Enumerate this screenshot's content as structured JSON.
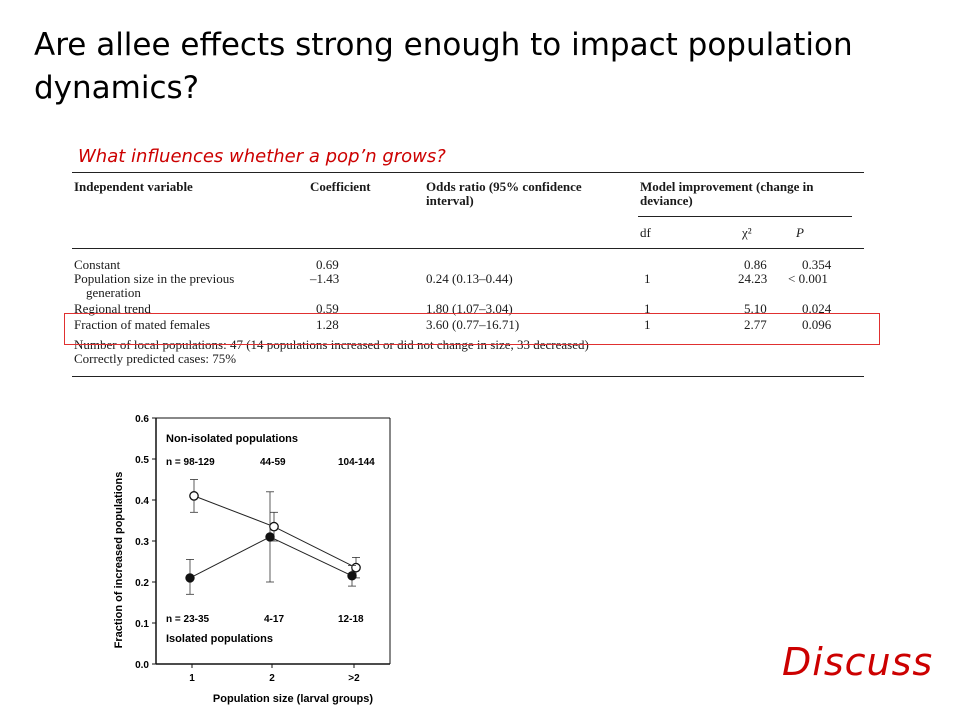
{
  "slide": {
    "title": "Are allee effects strong enough to impact population dynamics?",
    "subtitle": "What influences whether a pop’n grows?",
    "discuss": "Discuss",
    "accent_color": "#cc0000"
  },
  "table": {
    "headers": {
      "independent_variable": "Independent variable",
      "coefficient": "Coefficient",
      "odds_ratio_line1": "Odds ratio (95% confidence",
      "odds_ratio_line2": "interval)",
      "model_line1": "Model improvement (change in",
      "model_line2": "deviance)",
      "df": "df",
      "chi2": "χ²",
      "p": "P"
    },
    "rows": [
      {
        "variable": "Constant",
        "coefficient": "0.69",
        "odds": "",
        "df": "",
        "chi2": "0.86",
        "p": "0.354"
      },
      {
        "variable": "Population size in the previous",
        "variable2": "generation",
        "coefficient": "–1.43",
        "odds": "0.24 (0.13–0.44)",
        "df": "1",
        "chi2": "24.23",
        "p": "< 0.001"
      },
      {
        "variable": "Regional trend",
        "coefficient": "0.59",
        "odds": "1.80 (1.07–3.04)",
        "df": "1",
        "chi2": "5.10",
        "p": "0.024"
      },
      {
        "variable": "Fraction of mated females",
        "coefficient": "1.28",
        "odds": "3.60 (0.77–16.71)",
        "df": "1",
        "chi2": "2.77",
        "p": "0.096"
      }
    ],
    "footer1": "Number of local populations: 47 (14 populations increased or did not change in size, 33 decreased)",
    "footer2": "Correctly predicted cases: 75%"
  },
  "chart_data": {
    "type": "line",
    "categories": [
      "1",
      "2",
      ">2"
    ],
    "xlabel": "Population size (larval groups)",
    "ylabel": "Fraction of increased populations",
    "ylim": [
      0,
      0.6
    ],
    "yticks": [
      "0.0",
      "0.1",
      "0.2",
      "0.3",
      "0.4",
      "0.5",
      "0.6"
    ],
    "series": [
      {
        "name": "Non-isolated populations",
        "marker": "open-circle",
        "values": [
          0.41,
          0.335,
          0.235
        ],
        "err_low": [
          0.37,
          0.3,
          0.21
        ],
        "err_high": [
          0.45,
          0.37,
          0.26
        ],
        "n_labels": [
          "n = 98-129",
          "44-59",
          "104-144"
        ]
      },
      {
        "name": "Isolated populations",
        "marker": "filled-circle",
        "values": [
          0.21,
          0.31,
          0.215
        ],
        "err_low": [
          0.17,
          0.2,
          0.19
        ],
        "err_high": [
          0.255,
          0.42,
          0.24
        ],
        "n_labels": [
          "n = 23-35",
          "4-17",
          "12-18"
        ]
      }
    ]
  }
}
